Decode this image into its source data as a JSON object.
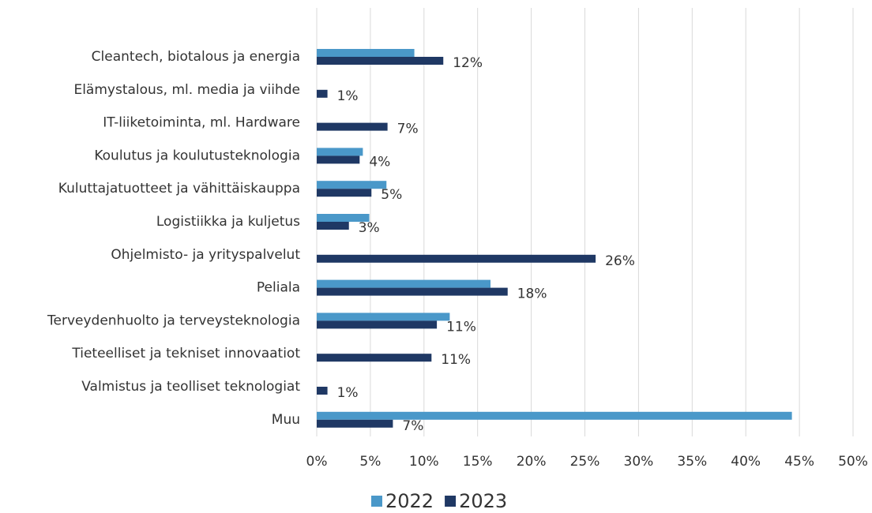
{
  "chart_data": {
    "type": "barh",
    "categories": [
      "Cleantech, biotalous ja energia",
      "Elämystalous, ml. media ja viihde",
      "IT-liiketoiminta, ml. Hardware",
      "Koulutus ja koulutusteknologia",
      "Kuluttajatuotteet ja vähittäiskauppa",
      "Logistiikka ja kuljetus",
      "Ohjelmisto- ja yrityspalvelut",
      "Peliala",
      "Terveydenhuolto ja terveysteknologia",
      "Tieteelliset ja tekniset innovaatiot",
      "Valmistus ja teolliset teknologiat",
      "Muu"
    ],
    "series": [
      {
        "name": "2022",
        "color": "#4a98c9",
        "values": [
          9.1,
          null,
          null,
          4.3,
          6.5,
          4.9,
          null,
          16.2,
          12.4,
          null,
          null,
          44.3
        ]
      },
      {
        "name": "2023",
        "color": "#1f3864",
        "values": [
          11.8,
          1.0,
          6.6,
          4.0,
          5.1,
          3.0,
          26.0,
          17.8,
          11.2,
          10.7,
          1.0,
          7.1
        ],
        "value_labels": [
          "12%",
          "1%",
          "7%",
          "4%",
          "5%",
          "3%",
          "26%",
          "18%",
          "11%",
          "11%",
          "1%",
          "7%"
        ]
      }
    ],
    "xlim": [
      0,
      50
    ],
    "xticks": [
      {
        "value": 0,
        "label": "0%"
      },
      {
        "value": 5,
        "label": "5%"
      },
      {
        "value": 10,
        "label": "10%"
      },
      {
        "value": 15,
        "label": "15%"
      },
      {
        "value": 20,
        "label": "20%"
      },
      {
        "value": 25,
        "label": "25%"
      },
      {
        "value": 30,
        "label": "30%"
      },
      {
        "value": 35,
        "label": "35%"
      },
      {
        "value": 40,
        "label": "40%"
      },
      {
        "value": 45,
        "label": "45%"
      },
      {
        "value": 50,
        "label": "50%"
      }
    ],
    "grid": true,
    "legend": "bottom"
  }
}
